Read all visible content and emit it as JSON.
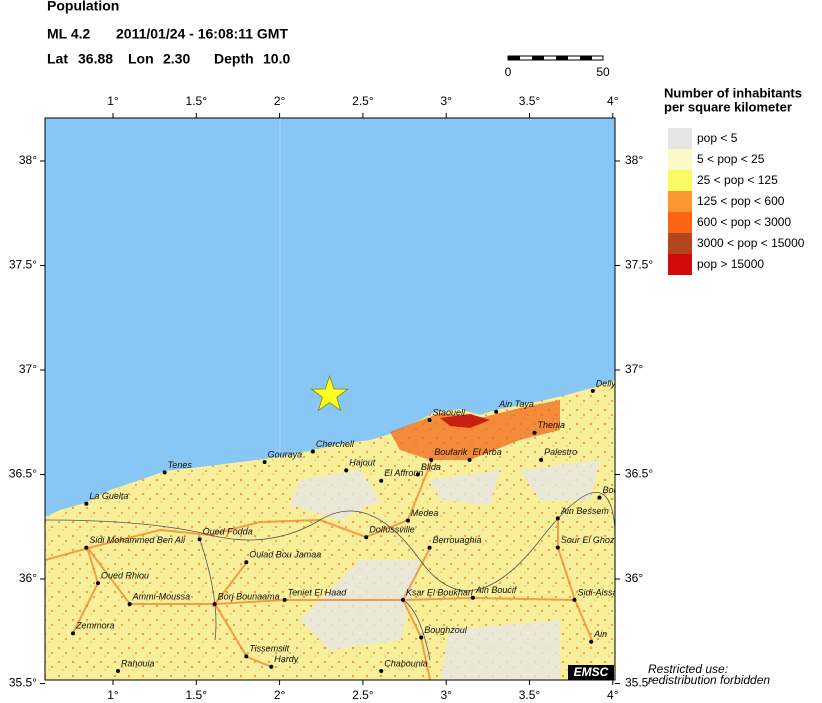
{
  "header": {
    "title": "Population",
    "magnitude": "ML 4.2",
    "datetime": "2011/01/24 - 16:08:11 GMT",
    "lat_label": "Lat",
    "lon_label": "Lon",
    "depth_label": "Depth"
  },
  "epicenter": {
    "lat": 36.88,
    "lon": {
      "value": 2.3,
      "label": "2.30"
    },
    "depth": {
      "value": 10,
      "label": "10.0"
    }
  },
  "scale_bar": {
    "ticks": [
      0,
      50
    ]
  },
  "legend": {
    "title": [
      "Number of inhabitants",
      "per square kilometer"
    ],
    "items": [
      {
        "label": "pop < 5",
        "color": "#e6e6e6"
      },
      {
        "label": "5 < pop < 25",
        "color": "#fafac8"
      },
      {
        "label": "25 < pop < 125",
        "color": "#fafa64"
      },
      {
        "label": "125 < pop < 600",
        "color": "#fa9632"
      },
      {
        "label": "600 < pop < 3000",
        "color": "#fa6414"
      },
      {
        "label": "3000 < pop < 15000",
        "color": "#b4461e"
      },
      {
        "label": "pop > 15000",
        "color": "#d20a0a"
      }
    ]
  },
  "map": {
    "lon_ticks": [
      {
        "value": 1,
        "label": "1°"
      },
      {
        "value": 1.5,
        "label": "1.5°"
      },
      {
        "value": 2,
        "label": "2°"
      },
      {
        "value": 2.5,
        "label": "2.5°"
      },
      {
        "value": 3,
        "label": "3°"
      },
      {
        "value": 3.5,
        "label": "3.5°"
      },
      {
        "value": 4,
        "label": "4°"
      }
    ],
    "lat_ticks": [
      {
        "value": 38,
        "label": "38°"
      },
      {
        "value": 37.5,
        "label": "37.5°"
      },
      {
        "value": 37,
        "label": "37°"
      },
      {
        "value": 36.5,
        "label": "36.5°"
      },
      {
        "value": 36,
        "label": "36°"
      },
      {
        "value": 35.5,
        "label": "35.5°"
      }
    ],
    "cities": [
      {
        "name": "Staoueli",
        "lon": 2.9,
        "lat": 36.76
      },
      {
        "name": "Ain Taya",
        "lon": 3.3,
        "lat": 36.8
      },
      {
        "name": "Thenia",
        "lon": 3.53,
        "lat": 36.7
      },
      {
        "name": "Dellys",
        "lon": 3.88,
        "lat": 36.9
      },
      {
        "name": "Boufarik",
        "lon": 2.91,
        "lat": 36.57
      },
      {
        "name": "El Arba",
        "lon": 3.14,
        "lat": 36.57
      },
      {
        "name": "Palestro",
        "lon": 3.57,
        "lat": 36.57
      },
      {
        "name": "Blida",
        "lon": 2.83,
        "lat": 36.5
      },
      {
        "name": "El Affroun",
        "lon": 2.61,
        "lat": 36.47
      },
      {
        "name": "Hajout",
        "lon": 2.4,
        "lat": 36.52
      },
      {
        "name": "Cherchell",
        "lon": 2.2,
        "lat": 36.61
      },
      {
        "name": "Gouraya",
        "lon": 1.91,
        "lat": 36.56
      },
      {
        "name": "Tenes",
        "lon": 1.31,
        "lat": 36.51
      },
      {
        "name": "La Guelta",
        "lon": 0.84,
        "lat": 36.36
      },
      {
        "name": "Medea",
        "lon": 2.77,
        "lat": 36.28
      },
      {
        "name": "Dolfussville",
        "lon": 2.52,
        "lat": 36.2
      },
      {
        "name": "Berrouaghia",
        "lon": 2.9,
        "lat": 36.15
      },
      {
        "name": "Bou",
        "lon": 3.92,
        "lat": 36.39
      },
      {
        "name": "Ain Bessem",
        "lon": 3.67,
        "lat": 36.29
      },
      {
        "name": "Sour El Ghozlane",
        "lon": 3.67,
        "lat": 36.15
      },
      {
        "name": "Sidi Mohammed Ben Ali",
        "lon": 0.84,
        "lat": 36.15
      },
      {
        "name": "Oued Fodda",
        "lon": 1.52,
        "lat": 36.19
      },
      {
        "name": "Oulad Bou Jamaa",
        "lon": 1.8,
        "lat": 36.08
      },
      {
        "name": "Oued Rhiou",
        "lon": 0.91,
        "lat": 35.98
      },
      {
        "name": "Ammi-Moussa",
        "lon": 1.1,
        "lat": 35.88
      },
      {
        "name": "Borj Bounaama",
        "lon": 1.61,
        "lat": 35.88
      },
      {
        "name": "Teniet El Haad",
        "lon": 2.03,
        "lat": 35.9
      },
      {
        "name": "Ksar El Boukhari",
        "lon": 2.74,
        "lat": 35.9
      },
      {
        "name": "Ain Boucif",
        "lon": 3.16,
        "lat": 35.91
      },
      {
        "name": "Sidi-Aissa",
        "lon": 3.77,
        "lat": 35.9
      },
      {
        "name": "Zemmora",
        "lon": 0.76,
        "lat": 35.74
      },
      {
        "name": "Boughzoul",
        "lon": 2.85,
        "lat": 35.72
      },
      {
        "name": "Ain",
        "lon": 3.87,
        "lat": 35.7
      },
      {
        "name": "Tissemsilt",
        "lon": 1.8,
        "lat": 35.63
      },
      {
        "name": "Hardy",
        "lon": 1.95,
        "lat": 35.58
      },
      {
        "name": "Rahouia",
        "lon": 1.03,
        "lat": 35.56
      },
      {
        "name": "Chabounia",
        "lon": 2.61,
        "lat": 35.56
      }
    ]
  },
  "logo": "EMSC",
  "footer": [
    "Restricted use:",
    "redistribution forbidden"
  ]
}
